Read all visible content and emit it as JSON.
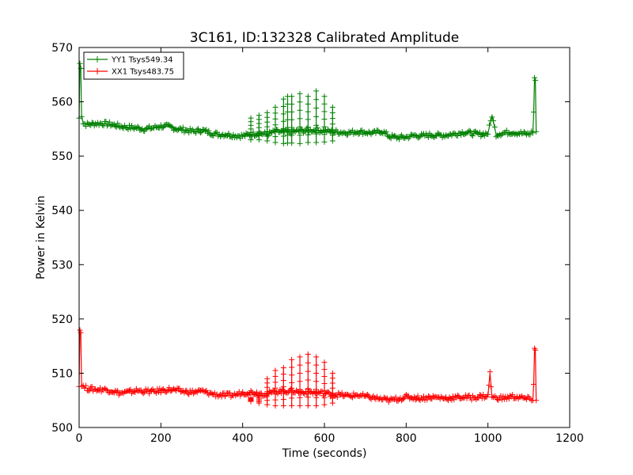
{
  "chart_data": {
    "type": "line",
    "title": "3C161, ID:132328 Calibrated Amplitude",
    "xlabel": "Time (seconds)",
    "ylabel": "Power in Kelvin",
    "xlim": [
      0,
      1200
    ],
    "ylim": [
      500,
      570
    ],
    "xticks": [
      0,
      200,
      400,
      600,
      800,
      1000,
      1200
    ],
    "yticks": [
      500,
      510,
      520,
      530,
      540,
      550,
      560,
      570
    ],
    "xtick_labels": [
      "0",
      "200",
      "400",
      "600",
      "800",
      "1000",
      "1200"
    ],
    "ytick_labels": [
      "500",
      "510",
      "520",
      "530",
      "540",
      "550",
      "560",
      "570"
    ],
    "grid": false,
    "legend_position": "top-left",
    "marker": "plus",
    "series": [
      {
        "name": "YY1 Tsys549.34",
        "color": "#008000",
        "x": [
          0,
          2,
          4,
          6,
          10,
          20,
          40,
          60,
          80,
          100,
          120,
          140,
          160,
          180,
          200,
          220,
          240,
          260,
          280,
          300,
          320,
          340,
          360,
          380,
          400,
          420,
          440,
          460,
          480,
          500,
          520,
          540,
          560,
          580,
          600,
          620,
          640,
          660,
          680,
          700,
          720,
          740,
          760,
          780,
          800,
          820,
          840,
          860,
          880,
          900,
          920,
          940,
          960,
          980,
          1000,
          1010,
          1020,
          1040,
          1060,
          1080,
          1100,
          1110,
          1112,
          1114,
          1116,
          1118
        ],
        "values": [
          557.0,
          567.0,
          566.5,
          557.5,
          556.0,
          555.8,
          556.0,
          556.0,
          555.8,
          555.5,
          555.3,
          555.2,
          555.0,
          555.2,
          555.5,
          555.4,
          555.0,
          554.8,
          554.5,
          554.8,
          554.3,
          554.0,
          554.0,
          553.8,
          553.7,
          554.0,
          554.2,
          554.0,
          554.5,
          554.4,
          554.5,
          554.6,
          554.7,
          554.8,
          554.6,
          554.5,
          554.4,
          554.3,
          554.5,
          554.4,
          554.2,
          554.6,
          553.6,
          553.4,
          553.5,
          553.8,
          553.7,
          553.9,
          553.8,
          553.9,
          554.1,
          554.4,
          554.2,
          554.0,
          554.2,
          557.5,
          554.0,
          554.3,
          554.4,
          554.2,
          554.0,
          554.5,
          558.0,
          564.5,
          564.0,
          554.5
        ]
      },
      {
        "name": "XX1 Tsys483.75",
        "color": "#ff0000",
        "x": [
          0,
          2,
          4,
          6,
          10,
          20,
          40,
          60,
          80,
          100,
          120,
          140,
          160,
          180,
          200,
          220,
          240,
          260,
          280,
          300,
          320,
          340,
          360,
          380,
          400,
          420,
          440,
          460,
          480,
          500,
          520,
          540,
          560,
          580,
          600,
          620,
          640,
          660,
          680,
          700,
          720,
          740,
          760,
          780,
          800,
          820,
          840,
          860,
          880,
          900,
          920,
          940,
          960,
          980,
          1000,
          1005,
          1010,
          1020,
          1040,
          1060,
          1080,
          1100,
          1110,
          1112,
          1114,
          1116,
          1118
        ],
        "values": [
          508.0,
          518.0,
          517.5,
          508.0,
          507.5,
          507.2,
          507.0,
          507.0,
          506.8,
          506.3,
          506.5,
          506.8,
          506.7,
          506.6,
          506.8,
          507.0,
          506.8,
          506.6,
          506.5,
          506.7,
          506.3,
          506.0,
          505.9,
          506.0,
          506.4,
          506.5,
          506.3,
          506.2,
          506.6,
          506.7,
          506.8,
          506.5,
          506.6,
          506.4,
          506.3,
          506.1,
          506.0,
          505.8,
          506.0,
          505.7,
          505.5,
          505.2,
          505.0,
          505.3,
          505.6,
          505.5,
          505.4,
          505.6,
          505.5,
          505.4,
          505.5,
          505.6,
          505.5,
          505.7,
          505.8,
          510.0,
          505.5,
          505.5,
          505.4,
          505.7,
          505.5,
          505.2,
          505.3,
          508.0,
          514.5,
          514.0,
          505.0
        ]
      }
    ],
    "spikes": [
      {
        "series": 0,
        "x": [
          420,
          440,
          460,
          480,
          500,
          510,
          520,
          540,
          560,
          580,
          600,
          620
        ],
        "top": [
          557.0,
          557.5,
          558.0,
          559.0,
          560.5,
          561.0,
          561.0,
          561.5,
          561.0,
          562.0,
          561.0,
          559.0
        ],
        "bottom": [
          553.0,
          553.0,
          552.8,
          552.5,
          552.3,
          552.4,
          552.4,
          552.3,
          552.5,
          552.5,
          552.6,
          552.8
        ]
      },
      {
        "series": 1,
        "x": [
          420,
          440,
          460,
          480,
          500,
          520,
          540,
          560,
          580,
          600,
          620
        ],
        "top": [
          505.5,
          506.0,
          509.0,
          510.5,
          511.0,
          512.5,
          513.0,
          513.5,
          513.0,
          512.0,
          510.0
        ],
        "bottom": [
          504.8,
          504.5,
          504.2,
          504.0,
          504.0,
          504.0,
          504.0,
          504.0,
          504.0,
          504.2,
          504.5
        ]
      }
    ]
  }
}
